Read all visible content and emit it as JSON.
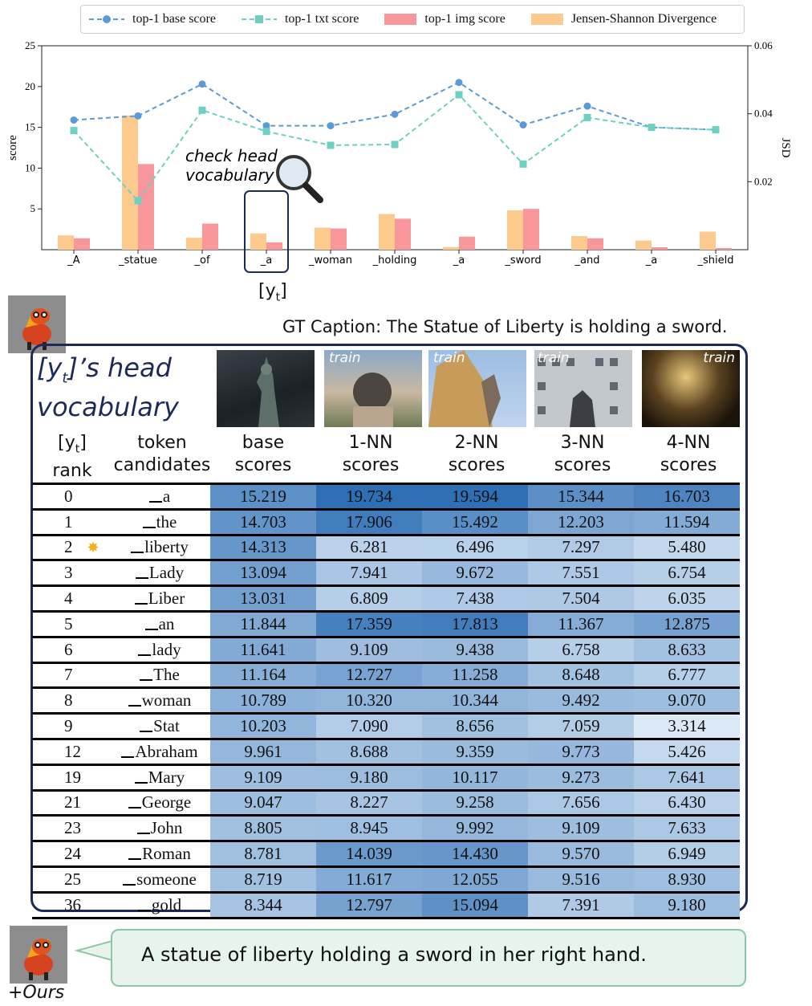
{
  "chart_data": {
    "type": "line",
    "categories": [
      "_A",
      "_statue",
      "_of",
      "_a",
      "_woman",
      "_holding",
      "_a",
      "_sword",
      "_and",
      "_a",
      "_shield"
    ],
    "series": [
      {
        "name": "top-1 base score",
        "kind": "line",
        "axis": "left",
        "values": [
          15.9,
          16.4,
          20.3,
          15.2,
          15.2,
          16.6,
          20.5,
          15.3,
          17.6,
          15.0,
          14.7
        ],
        "color": "#5b9bd5"
      },
      {
        "name": "top-1 txt score",
        "kind": "line",
        "axis": "left",
        "values": [
          14.6,
          6.0,
          17.1,
          14.5,
          12.8,
          12.9,
          19.0,
          10.5,
          16.2,
          15.0,
          14.7
        ],
        "color": "#6dd0c0"
      },
      {
        "name": "top-1 img score",
        "kind": "bar",
        "axis": "left",
        "values": [
          1.4,
          10.5,
          3.2,
          0.9,
          2.6,
          3.8,
          1.6,
          5.0,
          1.4,
          0.3,
          0.2
        ],
        "color": "#f7969b"
      },
      {
        "name": "Jensen-Shannon Divergence",
        "kind": "bar",
        "axis": "right",
        "values": [
          0.0042,
          0.0395,
          0.0035,
          0.0048,
          0.0065,
          0.0105,
          0.0008,
          0.0116,
          0.004,
          0.0027,
          0.0053
        ],
        "color": "#fcc98e"
      }
    ],
    "ylabel": "score",
    "y2label": "JSD",
    "ylim": [
      0,
      25
    ],
    "y2lim": [
      0,
      0.06
    ],
    "yticks": [
      5,
      10,
      15,
      20,
      25
    ],
    "y2ticks": [
      "0.02",
      "0.04",
      "0.06"
    ],
    "grid": false,
    "legend_position": "top",
    "highlight_index": 3
  },
  "annotation": {
    "line1": "check head",
    "line2": "vocabulary",
    "icon": "magnifier-icon"
  },
  "yt_label": "[y",
  "yt_sub": "t",
  "yt_close": "]",
  "gt_caption": "GT Caption: The Statue of Liberty is holding a sword.",
  "head_title": {
    "line1_pre": "[y",
    "line1_sub": "t",
    "line1_post": "]’s head",
    "line2": "vocabulary"
  },
  "thumbs": [
    {
      "tag": ""
    },
    {
      "tag": "train"
    },
    {
      "tag": "train"
    },
    {
      "tag": "train"
    },
    {
      "tag": "train"
    }
  ],
  "table": {
    "head_rank_pre": "[y",
    "head_rank_sub": "t",
    "head_rank_post": "]",
    "head_rank_line2": "rank",
    "head_token": "token",
    "head_token_line2": "candidates",
    "score_cols": [
      {
        "l1": "base",
        "l2": "scores"
      },
      {
        "l1": "1-NN",
        "l2": "scores"
      },
      {
        "l1": "2-NN",
        "l2": "scores"
      },
      {
        "l1": "3-NN",
        "l2": "scores"
      },
      {
        "l1": "4-NN",
        "l2": "scores"
      }
    ],
    "rows": [
      {
        "rank": "0",
        "token": "a",
        "star": false,
        "s": [
          "15.219",
          "19.734",
          "19.594",
          "15.344",
          "16.703"
        ]
      },
      {
        "rank": "1",
        "token": "the",
        "star": false,
        "s": [
          "14.703",
          "17.906",
          "15.492",
          "12.203",
          "11.594"
        ]
      },
      {
        "rank": "2",
        "token": "liberty",
        "star": true,
        "s": [
          "14.313",
          "6.281",
          "6.496",
          "7.297",
          "5.480"
        ]
      },
      {
        "rank": "3",
        "token": "Lady",
        "star": false,
        "s": [
          "13.094",
          "7.941",
          "9.672",
          "7.551",
          "6.754"
        ]
      },
      {
        "rank": "4",
        "token": "Liber",
        "star": false,
        "s": [
          "13.031",
          "6.809",
          "7.438",
          "7.504",
          "6.035"
        ]
      },
      {
        "rank": "5",
        "token": "an",
        "star": false,
        "s": [
          "11.844",
          "17.359",
          "17.813",
          "11.367",
          "12.875"
        ]
      },
      {
        "rank": "6",
        "token": "lady",
        "star": false,
        "s": [
          "11.641",
          "9.109",
          "9.438",
          "6.758",
          "8.633"
        ]
      },
      {
        "rank": "7",
        "token": "The",
        "star": false,
        "s": [
          "11.164",
          "12.727",
          "11.258",
          "8.648",
          "6.777"
        ]
      },
      {
        "rank": "8",
        "token": "woman",
        "star": false,
        "s": [
          "10.789",
          "10.320",
          "10.344",
          "9.492",
          "9.070"
        ]
      },
      {
        "rank": "9",
        "token": "Stat",
        "star": false,
        "s": [
          "10.203",
          "7.090",
          "8.656",
          "7.059",
          "3.314"
        ]
      },
      {
        "rank": "12",
        "token": "Abraham",
        "star": false,
        "s": [
          "9.961",
          "8.688",
          "9.359",
          "9.773",
          "5.426"
        ]
      },
      {
        "rank": "19",
        "token": "Mary",
        "star": false,
        "s": [
          "9.109",
          "9.180",
          "10.117",
          "9.273",
          "7.641"
        ]
      },
      {
        "rank": "21",
        "token": "George",
        "star": false,
        "s": [
          "9.047",
          "8.227",
          "9.258",
          "7.656",
          "6.430"
        ]
      },
      {
        "rank": "23",
        "token": "John",
        "star": false,
        "s": [
          "8.805",
          "8.945",
          "9.992",
          "9.109",
          "7.633"
        ]
      },
      {
        "rank": "24",
        "token": "Roman",
        "star": false,
        "s": [
          "8.781",
          "14.039",
          "14.430",
          "9.570",
          "6.949"
        ]
      },
      {
        "rank": "25",
        "token": "someone",
        "star": false,
        "s": [
          "8.719",
          "11.617",
          "12.055",
          "9.516",
          "8.930"
        ]
      },
      {
        "rank": "36",
        "token": "gold",
        "star": false,
        "s": [
          "8.344",
          "12.797",
          "15.094",
          "7.391",
          "9.180"
        ]
      }
    ]
  },
  "ours_caption": "A statue of liberty holding a sword in her right hand.",
  "ours_label": "+Ours"
}
